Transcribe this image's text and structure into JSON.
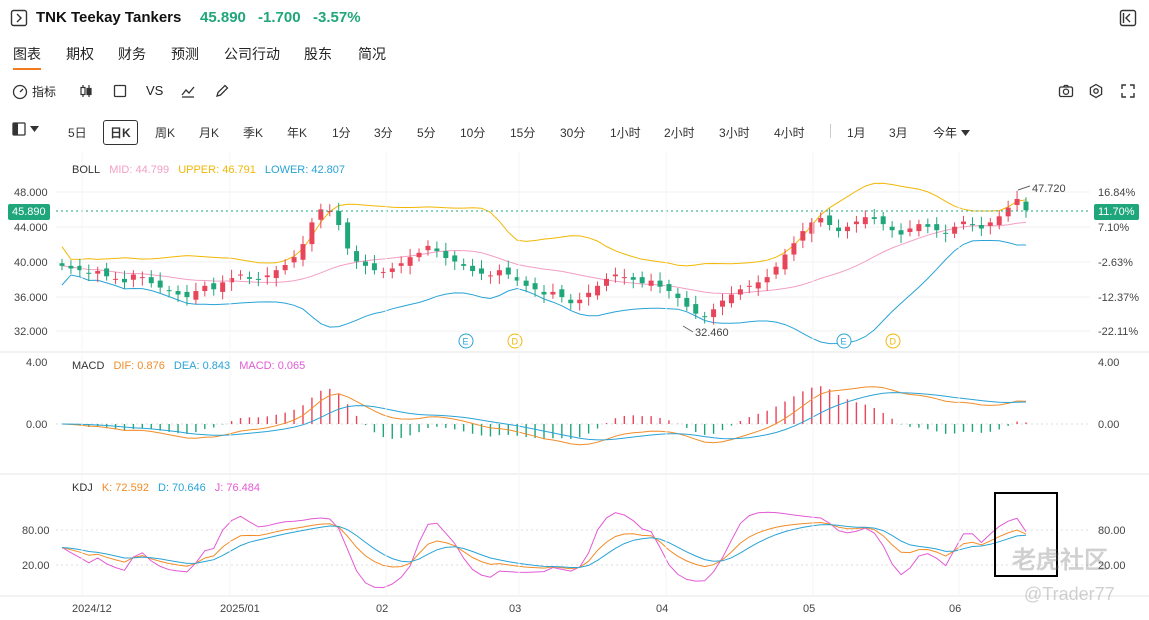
{
  "header": {
    "symbol": "TNK",
    "name": "Teekay Tankers",
    "price": "45.890",
    "change": "-1.700",
    "change_pct": "-3.57%"
  },
  "tabs": [
    "图表",
    "期权",
    "财务",
    "预测",
    "公司行动",
    "股东",
    "简况"
  ],
  "active_tab": "图表",
  "toolbar": {
    "indicator_label": "指标",
    "vs_label": "VS"
  },
  "periods": [
    "5日",
    "日K",
    "周K",
    "月K",
    "季K",
    "年K",
    "1分",
    "3分",
    "5分",
    "10分",
    "15分",
    "30分",
    "1小时",
    "2小时",
    "3小时",
    "4小时",
    "1月",
    "3月",
    "今年"
  ],
  "active_period": "日K",
  "boll": {
    "label": "BOLL",
    "mid": "MID: 44.799",
    "upper": "UPPER: 46.791",
    "lower": "LOWER: 42.807",
    "y_ticks": [
      "48.000",
      "44.000",
      "40.000",
      "36.000",
      "32.000"
    ],
    "pct_ticks": [
      "16.84%",
      "7.10%",
      "-2.63%",
      "-12.37%",
      "-22.11%"
    ],
    "current_price": "45.890",
    "current_pct": "11.70%",
    "high_label": "47.720",
    "low_label": "32.460",
    "events": [
      "E",
      "D",
      "E",
      "D"
    ]
  },
  "macd": {
    "label": "MACD",
    "dif": "DIF: 0.876",
    "dea": "DEA: 0.843",
    "macd": "MACD: 0.065",
    "ticks": [
      "4.00",
      "0.00"
    ]
  },
  "kdj": {
    "label": "KDJ",
    "k": "K: 72.592",
    "d": "D: 70.646",
    "j": "J: 76.484",
    "ticks": [
      "80.00",
      "20.00"
    ]
  },
  "x_axis": [
    "2024/12",
    "2025/01",
    "02",
    "03",
    "04",
    "05",
    "06"
  ],
  "watermark": {
    "brand": "老虎社区",
    "user": "@Trader77"
  },
  "colors": {
    "up": "#e8455b",
    "down": "#1fa67a",
    "mid": "#f29fc4",
    "upper": "#f2b705",
    "lower": "#29a3d6",
    "dif": "#f28c28",
    "dea": "#29a3d6",
    "j": "#e35ad6",
    "accent": "#f27b20"
  }
}
